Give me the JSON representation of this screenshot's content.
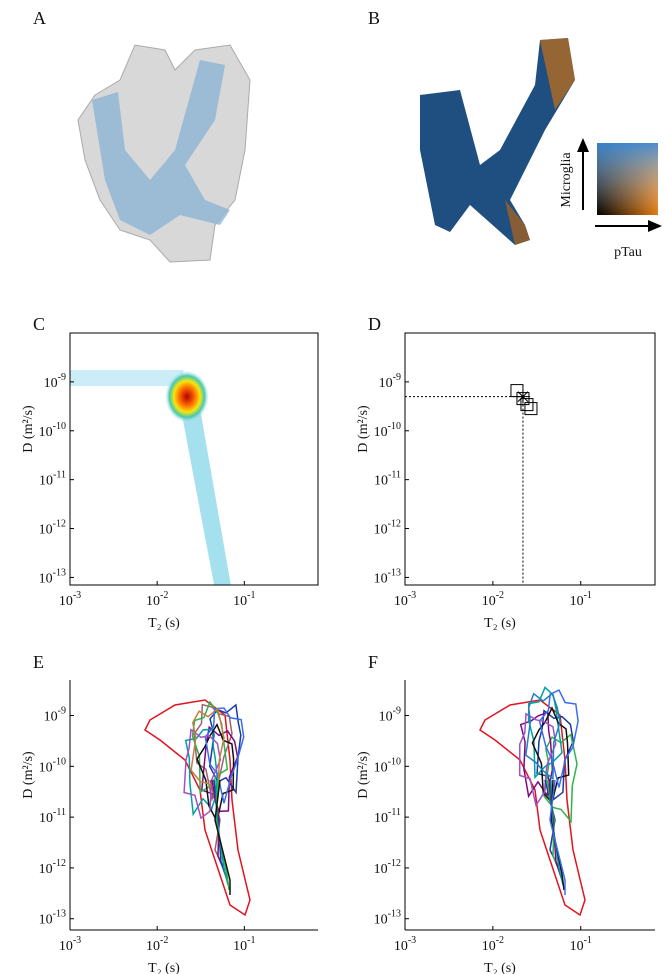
{
  "panels": {
    "letters": [
      "A",
      "B",
      "C",
      "D",
      "E",
      "F"
    ],
    "colormap_y_label": "Microglia",
    "colormap_x_label": "pTau"
  },
  "chart_data": [
    {
      "type": "heatmap",
      "xlabel": "T₂ (s)",
      "ylabel": "D (m²/s)",
      "log_x": true,
      "log_y": true,
      "box": true,
      "xlim": [
        0.001,
        0.7
      ],
      "ylim": [
        7e-14,
        1e-08
      ],
      "xticks": [
        {
          "value": 0.001,
          "label": "10",
          "exponent": "-3"
        },
        {
          "value": 0.01,
          "label": "10",
          "exponent": "-2"
        },
        {
          "value": 0.1,
          "label": "10",
          "exponent": "-1"
        }
      ],
      "yticks": [
        {
          "value": 1e-13,
          "label": "10",
          "exponent": "-13"
        },
        {
          "value": 1e-12,
          "label": "10",
          "exponent": "-12"
        },
        {
          "value": 1e-11,
          "label": "10",
          "exponent": "-11"
        },
        {
          "value": 1e-10,
          "label": "10",
          "exponent": "-10"
        },
        {
          "value": 1e-09,
          "label": "10",
          "exponent": "-9"
        }
      ]
    },
    {
      "type": "scatter",
      "xlabel": "T₂ (s)",
      "ylabel": "D (m²/s)",
      "log_x": true,
      "log_y": true,
      "box": true,
      "xlim": [
        0.001,
        0.7
      ],
      "ylim": [
        7e-14,
        1e-08
      ],
      "x": [
        0.022
      ],
      "values": [
        5e-10
      ],
      "color": "#000000",
      "xticks": [
        {
          "value": 0.001,
          "label": "10",
          "exponent": "-3"
        },
        {
          "value": 0.01,
          "label": "10",
          "exponent": "-2"
        },
        {
          "value": 0.1,
          "label": "10",
          "exponent": "-1"
        }
      ],
      "yticks": [
        {
          "value": 1e-13,
          "label": "10",
          "exponent": "-13"
        },
        {
          "value": 1e-12,
          "label": "10",
          "exponent": "-12"
        },
        {
          "value": 1e-11,
          "label": "10",
          "exponent": "-11"
        },
        {
          "value": 1e-10,
          "label": "10",
          "exponent": "-10"
        },
        {
          "value": 1e-09,
          "label": "10",
          "exponent": "-9"
        }
      ]
    },
    {
      "type": "contour",
      "xlabel": "T₂ (s)",
      "ylabel": "D (m²/s)",
      "log_x": true,
      "log_y": true,
      "box": false,
      "xlim": [
        0.001,
        0.7
      ],
      "ylim": [
        6e-14,
        5e-09
      ],
      "xticks": [
        {
          "value": 0.001,
          "label": "10",
          "exponent": "-3"
        },
        {
          "value": 0.01,
          "label": "10",
          "exponent": "-2"
        },
        {
          "value": 0.1,
          "label": "10",
          "exponent": "-1"
        }
      ],
      "yticks": [
        {
          "value": 1e-13,
          "label": "10",
          "exponent": "-13"
        },
        {
          "value": 1e-12,
          "label": "10",
          "exponent": "-12"
        },
        {
          "value": 1e-11,
          "label": "10",
          "exponent": "-11"
        },
        {
          "value": 1e-10,
          "label": "10",
          "exponent": "-10"
        },
        {
          "value": 1e-09,
          "label": "10",
          "exponent": "-9"
        }
      ]
    },
    {
      "type": "contour",
      "xlabel": "T₂ (s)",
      "ylabel": "D (m²/s)",
      "log_x": true,
      "log_y": true,
      "box": false,
      "xlim": [
        0.001,
        0.7
      ],
      "ylim": [
        6e-14,
        5e-09
      ],
      "xticks": [
        {
          "value": 0.001,
          "label": "10",
          "exponent": "-3"
        },
        {
          "value": 0.01,
          "label": "10",
          "exponent": "-2"
        },
        {
          "value": 0.1,
          "label": "10",
          "exponent": "-1"
        }
      ],
      "yticks": [
        {
          "value": 1e-13,
          "label": "10",
          "exponent": "-13"
        },
        {
          "value": 1e-12,
          "label": "10",
          "exponent": "-12"
        },
        {
          "value": 1e-11,
          "label": "10",
          "exponent": "-11"
        },
        {
          "value": 1e-10,
          "label": "10",
          "exponent": "-10"
        },
        {
          "value": 1e-09,
          "label": "10",
          "exponent": "-9"
        }
      ]
    }
  ]
}
